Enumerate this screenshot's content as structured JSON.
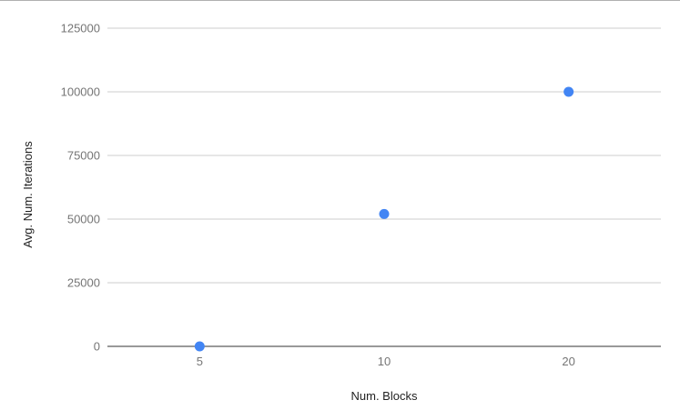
{
  "chart_data": {
    "type": "scatter",
    "title": "",
    "xlabel": "Num. Blocks",
    "ylabel": "Avg. Num. Iterations",
    "categories": [
      "5",
      "10",
      "20"
    ],
    "series": [
      {
        "values": [
          0,
          52000,
          100000
        ]
      }
    ],
    "ylim": [
      0,
      125000
    ],
    "yticks": [
      "0",
      "25000",
      "50000",
      "75000",
      "100000",
      "125000"
    ],
    "grid": true,
    "legend": "none",
    "colors": {
      "point": "#4285f4",
      "grid": "#cccccc",
      "baseline": "#333333"
    }
  }
}
